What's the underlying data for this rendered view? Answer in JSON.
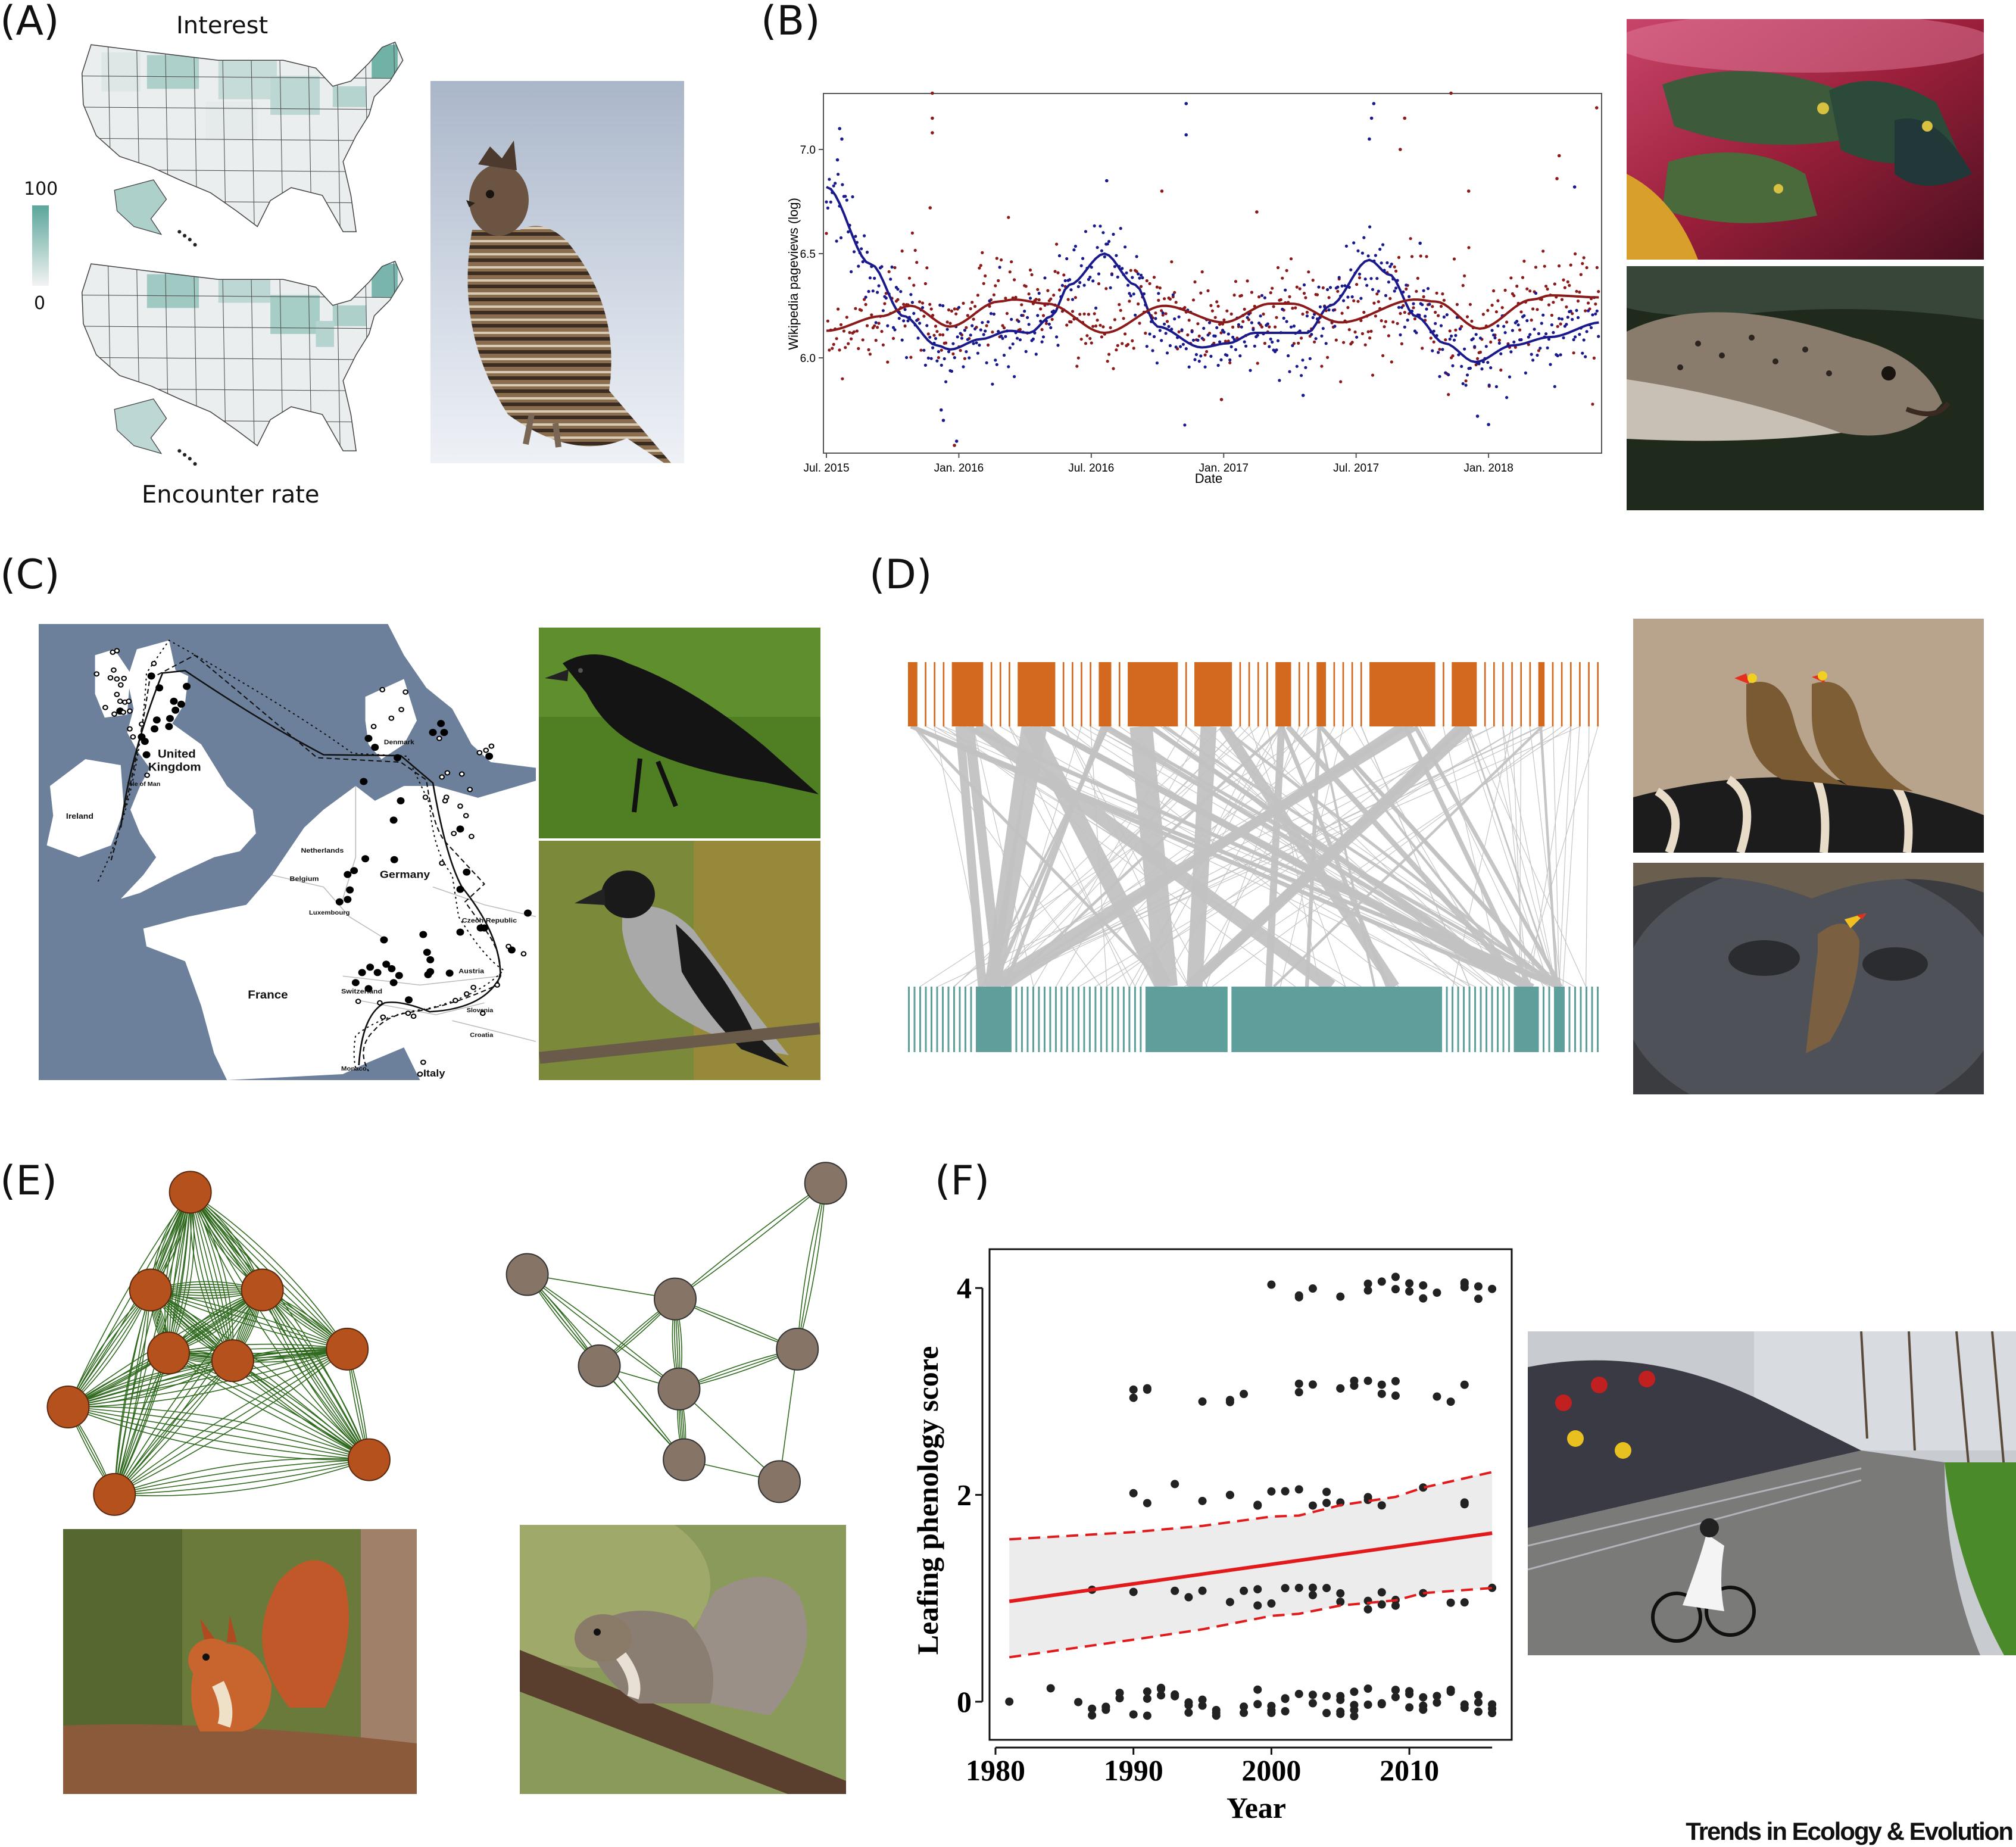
{
  "panels": {
    "A": {
      "label": "(A)",
      "top_title": "Interest",
      "bottom_title": "Encounter rate",
      "legend": {
        "max": "100",
        "min": "0",
        "color_low": "#f3f3f3",
        "color_high": "#5aa69a"
      }
    },
    "B": {
      "label": "(B)"
    },
    "C": {
      "label": "(C)",
      "map_labels": [
        "United Kingdom",
        "Isle of Man",
        "Ireland",
        "Denmark",
        "Netherlands",
        "Belgium",
        "Germany",
        "Luxembourg",
        "Czech Republic",
        "Austria",
        "Switzerland",
        "France",
        "Slovenia",
        "Croatia",
        "Monaco",
        "Italy"
      ],
      "colors": {
        "sea": "#6c7f9b",
        "land": "#ffffff"
      }
    },
    "D": {
      "label": "(D)",
      "colors": {
        "top": "#d2691f",
        "bottom": "#5e9e9b",
        "link": "#c2c2c2"
      }
    },
    "E": {
      "label": "(E)",
      "colors": {
        "left_nodes": "#b4511d",
        "right_nodes": "#867566",
        "edges": "#2f6a1e"
      }
    },
    "F": {
      "label": "(F)"
    }
  },
  "chart_data": [
    {
      "id": "B",
      "type": "scatter",
      "title": "",
      "xlabel": "Date",
      "ylabel": "Wikipedia pageviews (log)",
      "x_unit": "months since Jul. 2015",
      "xlim": [
        -0.3,
        35.1
      ],
      "ylim": [
        5.54,
        7.27
      ],
      "x_ticks": [
        {
          "x": 0,
          "label": "Jul. 2015"
        },
        {
          "x": 6,
          "label": "Jan. 2016"
        },
        {
          "x": 12,
          "label": "Jul. 2016"
        },
        {
          "x": 18,
          "label": "Jan. 2017"
        },
        {
          "x": 24,
          "label": "Jul. 2017"
        },
        {
          "x": 30,
          "label": "Jan. 2018"
        }
      ],
      "y_ticks": [
        {
          "y": 6.0,
          "label": "6.0"
        },
        {
          "y": 6.5,
          "label": "6.5"
        },
        {
          "y": 7.0,
          "label": "7.0"
        }
      ],
      "series": [
        {
          "name": "blue",
          "color": "#1a1a8c",
          "smooth": [
            [
              0,
              6.82
            ],
            [
              2,
              6.45
            ],
            [
              3.5,
              6.2
            ],
            [
              5,
              6.06
            ],
            [
              5.6,
              6.04
            ],
            [
              7,
              6.09
            ],
            [
              8.3,
              6.13
            ],
            [
              9.2,
              6.12
            ],
            [
              10.2,
              6.2
            ],
            [
              11,
              6.35
            ],
            [
              12.6,
              6.5
            ],
            [
              14,
              6.35
            ],
            [
              15,
              6.15
            ],
            [
              17,
              6.05
            ],
            [
              18.2,
              6.07
            ],
            [
              19.4,
              6.12
            ],
            [
              21.8,
              6.12
            ],
            [
              22.8,
              6.25
            ],
            [
              24.6,
              6.47
            ],
            [
              25.5,
              6.4
            ],
            [
              26.7,
              6.2
            ],
            [
              28,
              6.07
            ],
            [
              29.4,
              5.98
            ],
            [
              31.1,
              6.06
            ],
            [
              32.8,
              6.1
            ],
            [
              35.1,
              6.17
            ]
          ],
          "outliers": [
            [
              0.6,
              7.1
            ],
            [
              0.7,
              7.05
            ],
            [
              0.5,
              6.95
            ],
            [
              5.2,
              5.75
            ],
            [
              5.3,
              5.7
            ],
            [
              5.9,
              5.6
            ],
            [
              12.7,
              6.85
            ],
            [
              16.3,
              7.22
            ],
            [
              16.3,
              7.07
            ],
            [
              21.6,
              5.82
            ],
            [
              24.8,
              7.22
            ],
            [
              24.7,
              7.15
            ],
            [
              24.6,
              7.05
            ],
            [
              26.9,
              6.55
            ],
            [
              29.5,
              5.72
            ],
            [
              30.0,
              5.68
            ],
            [
              33.9,
              6.82
            ]
          ],
          "noise_sd": 0.1
        },
        {
          "name": "red",
          "color": "#8b1a1a",
          "smooth": [
            [
              0,
              6.13
            ],
            [
              2.5,
              6.2
            ],
            [
              3.8,
              6.25
            ],
            [
              5.6,
              6.15
            ],
            [
              7.8,
              6.27
            ],
            [
              8.5,
              6.28
            ],
            [
              10,
              6.26
            ],
            [
              12.6,
              6.12
            ],
            [
              15.3,
              6.25
            ],
            [
              18,
              6.17
            ],
            [
              20.1,
              6.26
            ],
            [
              21.1,
              6.26
            ],
            [
              23.3,
              6.17
            ],
            [
              26.7,
              6.28
            ],
            [
              27.6,
              6.27
            ],
            [
              29.6,
              6.14
            ],
            [
              32,
              6.28
            ],
            [
              32.8,
              6.3
            ],
            [
              35.1,
              6.29
            ]
          ],
          "outliers": [
            [
              4.8,
              7.27
            ],
            [
              4.8,
              7.15
            ],
            [
              4.8,
              7.08
            ],
            [
              4.7,
              6.72
            ],
            [
              15.2,
              6.8
            ],
            [
              19.5,
              6.7
            ],
            [
              26.2,
              7.15
            ],
            [
              26.0,
              7.0
            ],
            [
              28.3,
              7.27
            ],
            [
              29.1,
              6.8
            ],
            [
              33.2,
              6.97
            ],
            [
              33.1,
              6.86
            ],
            [
              34.9,
              7.2
            ],
            [
              17.9,
              5.8
            ],
            [
              5.8,
              5.58
            ]
          ],
          "noise_sd": 0.12
        }
      ]
    },
    {
      "id": "F",
      "type": "scatter",
      "title": "",
      "xlabel": "Year",
      "ylabel": "Leafing phenology score",
      "xlim": [
        1979.4,
        2017.3
      ],
      "ylim": [
        -0.28,
        4.37
      ],
      "x_ticks": [
        {
          "x": 1980,
          "label": "1980"
        },
        {
          "x": 1990,
          "label": "1990"
        },
        {
          "x": 2000,
          "label": "2000"
        },
        {
          "x": 2010,
          "label": "2010"
        }
      ],
      "y_ticks": [
        {
          "y": 0,
          "label": "0"
        },
        {
          "y": 2,
          "label": "2"
        },
        {
          "y": 4,
          "label": "4"
        }
      ],
      "trend": {
        "x": [
          1981,
          2016
        ],
        "fit": [
          0.97,
          1.63
        ],
        "color": "#e31a1c"
      },
      "ci_lower": [
        [
          1981,
          0.43
        ],
        [
          1990,
          0.6
        ],
        [
          1995,
          0.7
        ],
        [
          2000,
          0.83
        ],
        [
          2002,
          0.85
        ],
        [
          2005,
          0.93
        ],
        [
          2009,
          0.98
        ],
        [
          2011,
          1.05
        ],
        [
          2016,
          1.1
        ]
      ],
      "ci_upper": [
        [
          1981,
          1.57
        ],
        [
          1990,
          1.64
        ],
        [
          1995,
          1.7
        ],
        [
          2000,
          1.79
        ],
        [
          2002,
          1.8
        ],
        [
          2005,
          1.9
        ],
        [
          2009,
          1.98
        ],
        [
          2011,
          2.07
        ],
        [
          2016,
          2.22
        ]
      ],
      "points": [
        {
          "score": 4,
          "years": [
            2000,
            2002,
            2002,
            2003,
            2005,
            2007,
            2007,
            2008,
            2009,
            2009,
            2010,
            2010,
            2011,
            2011,
            2012,
            2014,
            2014,
            2014,
            2015,
            2015,
            2016
          ]
        },
        {
          "score": 3,
          "years": [
            1990,
            1990,
            1991,
            1991,
            1995,
            1997,
            1997,
            1998,
            2002,
            2002,
            2003,
            2005,
            2005,
            2006,
            2006,
            2007,
            2008,
            2008,
            2009,
            2009,
            2012,
            2013,
            2014
          ]
        },
        {
          "score": 2,
          "years": [
            1990,
            1991,
            1993,
            1995,
            1997,
            1997,
            1999,
            1999,
            2000,
            2001,
            2002,
            2003,
            2004,
            2004,
            2005,
            2007,
            2007,
            2008,
            2011,
            2014,
            2014
          ]
        },
        {
          "score": 1,
          "years": [
            1987,
            1990,
            1993,
            1994,
            1995,
            1997,
            1998,
            1999,
            1999,
            2000,
            2001,
            2002,
            2003,
            2003,
            2004,
            2005,
            2005,
            2007,
            2007,
            2008,
            2008,
            2009,
            2009,
            2011,
            2013,
            2014,
            2016
          ]
        },
        {
          "score": 0,
          "years": [
            1981,
            1984,
            1986,
            1987,
            1987,
            1988,
            1988,
            1988,
            1989,
            1989,
            1990,
            1991,
            1991,
            1991,
            1992,
            1992,
            1992,
            1993,
            1993,
            1994,
            1994,
            1994,
            1995,
            1995,
            1996,
            1996,
            1996,
            1998,
            1998,
            1999,
            1999,
            2000,
            2000,
            2000,
            2001,
            2001,
            2001,
            2002,
            2003,
            2003,
            2004,
            2004,
            2005,
            2005,
            2005,
            2005,
            2006,
            2006,
            2006,
            2006,
            2007,
            2007,
            2008,
            2008,
            2009,
            2009,
            2009,
            2010,
            2010,
            2010,
            2011,
            2011,
            2011,
            2012,
            2012,
            2013,
            2013,
            2014,
            2014,
            2015,
            2015,
            2015,
            2016,
            2016,
            2016
          ]
        }
      ]
    }
  ],
  "footer": {
    "journal": "Trends in Ecology & Evolution"
  }
}
